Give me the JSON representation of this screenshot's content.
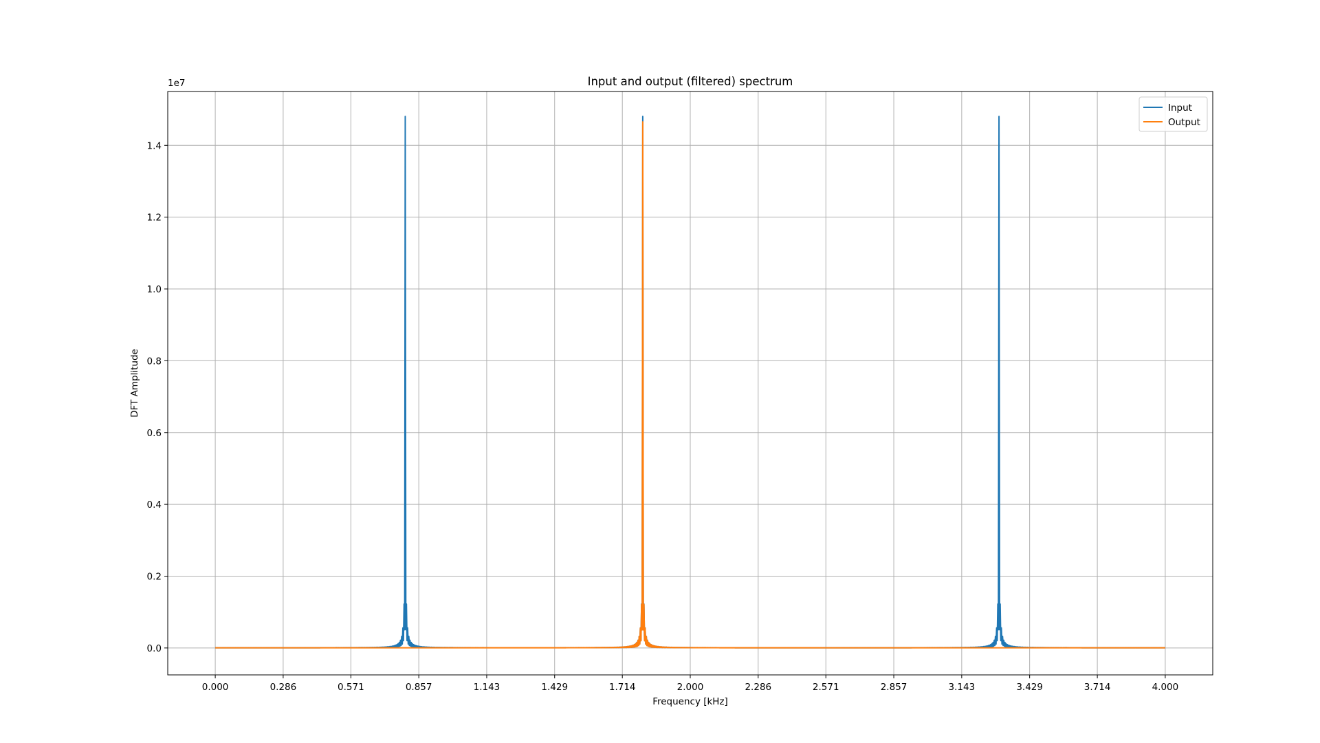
{
  "chart_data": {
    "type": "line",
    "title": "Input and output (filtered) spectrum",
    "xlabel": "Frequency [kHz]",
    "ylabel": "DFT Amplitude",
    "y_offset_label": "1e7",
    "y_scale": 10000000,
    "xlim": [
      -0.2,
      4.2
    ],
    "ylim": [
      -0.075,
      1.55
    ],
    "x_ticks": [
      0.0,
      0.286,
      0.571,
      0.857,
      1.143,
      1.429,
      1.714,
      2.0,
      2.286,
      2.571,
      2.857,
      3.143,
      3.429,
      3.714,
      4.0
    ],
    "x_tick_labels": [
      "0.000",
      "0.286",
      "0.571",
      "0.857",
      "1.143",
      "1.429",
      "1.714",
      "2.000",
      "2.286",
      "2.571",
      "2.857",
      "3.143",
      "3.429",
      "3.714",
      "4.000"
    ],
    "y_ticks": [
      0.0,
      0.2,
      0.4,
      0.6,
      0.8,
      1.0,
      1.2,
      1.4
    ],
    "y_tick_labels": [
      "0.0",
      "0.2",
      "0.4",
      "0.6",
      "0.8",
      "1.0",
      "1.2",
      "1.4"
    ],
    "grid": true,
    "legend_position": "top-right",
    "series": [
      {
        "name": "Input",
        "color": "#1f77b4",
        "x_range": [
          0.0,
          4.0
        ],
        "peaks": [
          {
            "freq": 0.8,
            "amplitude": 1.48
          },
          {
            "freq": 1.8,
            "amplitude": 1.48
          },
          {
            "freq": 3.3,
            "amplitude": 1.48
          }
        ]
      },
      {
        "name": "Output",
        "color": "#ff7f0e",
        "x_range": [
          0.0,
          4.0
        ],
        "peaks": [
          {
            "freq": 1.8,
            "amplitude": 1.465
          }
        ]
      }
    ]
  }
}
